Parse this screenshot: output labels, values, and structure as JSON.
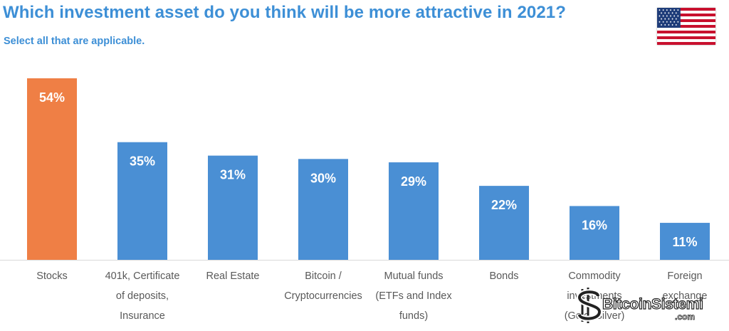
{
  "header": {
    "title": "Which investment asset do you think will be more attractive in 2021?",
    "subtitle": "Select all that are applicable."
  },
  "flag_icon": "us-flag-icon",
  "watermark": {
    "text": "BitcoinSistemi",
    "sub": ".com"
  },
  "colors": {
    "highlight": "#ef7f45",
    "bar": "#4a8fd4",
    "title": "#3d8fd6",
    "label": "#595959",
    "value_text": "#ffffff",
    "baseline": "#d9d9d9"
  },
  "chart_data": {
    "type": "bar",
    "title": "Which investment asset do you think will be more attractive in 2021?",
    "subtitle": "Select all that are applicable.",
    "xlabel": "",
    "ylabel": "",
    "ylim": [
      0,
      54
    ],
    "grid": false,
    "legend": "none",
    "value_suffix": "%",
    "highlight_index": 0,
    "categories": [
      [
        "Stocks"
      ],
      [
        "401k, Certificate",
        "of deposits,",
        "Insurance"
      ],
      [
        "Real Estate"
      ],
      [
        "Bitcoin /",
        "Cryptocurrencies"
      ],
      [
        "Mutual funds",
        "(ETFs and Index",
        "funds)"
      ],
      [
        "Bonds"
      ],
      [
        "Commodity",
        "investments",
        "(Gold, Silver)"
      ],
      [
        "Foreign",
        "exchange"
      ]
    ],
    "values": [
      54,
      35,
      31,
      30,
      29,
      22,
      16,
      11
    ],
    "value_labels": [
      "54%",
      "35%",
      "31%",
      "30%",
      "29%",
      "22%",
      "16%",
      "11%"
    ]
  }
}
